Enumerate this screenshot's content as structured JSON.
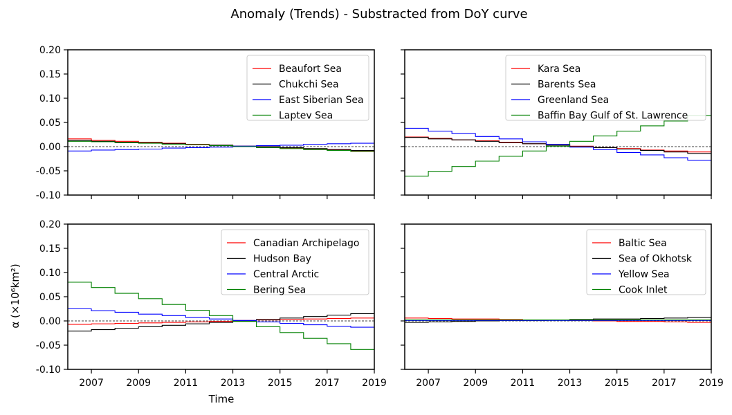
{
  "figure": {
    "title": "Anomaly (Trends) - Substracted from DoY curve",
    "xlabel": "Time",
    "ylabel": "α (×10⁶km²)"
  },
  "chart_data": [
    {
      "type": "line",
      "step": true,
      "panel": "top-left",
      "xlim": [
        2006,
        2019
      ],
      "ylim": [
        -0.1,
        0.2
      ],
      "xticks": [
        "2007",
        "2009",
        "2011",
        "2013",
        "2015",
        "2017",
        "2019"
      ],
      "yticks": [
        "0.20",
        "0.15",
        "0.10",
        "0.05",
        "0.00",
        "-0.05",
        "-0.10"
      ],
      "show_xtick_labels": false,
      "show_ytick_labels": true,
      "zero_line": true,
      "legend_position": "top-right",
      "x": [
        2006,
        2007,
        2008,
        2009,
        2010,
        2011,
        2012,
        2013,
        2014,
        2015,
        2016,
        2017,
        2018
      ],
      "series": [
        {
          "name": "Beaufort Sea",
          "color": "#ff0000",
          "values": [
            0.016,
            0.013,
            0.011,
            0.009,
            0.007,
            0.005,
            0.003,
            0.001,
            -0.001,
            -0.003,
            -0.005,
            -0.007,
            -0.009
          ]
        },
        {
          "name": "Chukchi Sea",
          "color": "#000000",
          "values": [
            0.013,
            0.011,
            0.009,
            0.008,
            0.006,
            0.004,
            0.003,
            0.001,
            0.0,
            -0.002,
            -0.004,
            -0.006,
            -0.008
          ]
        },
        {
          "name": "East Siberian Sea",
          "color": "#0000ff",
          "values": [
            -0.009,
            -0.007,
            -0.006,
            -0.005,
            -0.003,
            -0.002,
            -0.001,
            0.001,
            0.002,
            0.003,
            0.005,
            0.006,
            0.007
          ]
        },
        {
          "name": "Laptev Sea",
          "color": "#008000",
          "values": [
            0.011,
            0.01,
            0.008,
            0.007,
            0.005,
            0.004,
            0.002,
            0.0,
            -0.002,
            -0.004,
            -0.006,
            -0.008,
            -0.01
          ]
        }
      ]
    },
    {
      "type": "line",
      "step": true,
      "panel": "top-right",
      "xlim": [
        2006,
        2019
      ],
      "ylim": [
        -0.1,
        0.2
      ],
      "xticks": [
        "2007",
        "2009",
        "2011",
        "2013",
        "2015",
        "2017",
        "2019"
      ],
      "yticks": [
        "0.20",
        "0.15",
        "0.10",
        "0.05",
        "0.00",
        "-0.05",
        "-0.10"
      ],
      "show_xtick_labels": false,
      "show_ytick_labels": false,
      "zero_line": true,
      "legend_position": "top-right",
      "x": [
        2006,
        2007,
        2008,
        2009,
        2010,
        2011,
        2012,
        2013,
        2014,
        2015,
        2016,
        2017,
        2018
      ],
      "series": [
        {
          "name": "Kara Sea",
          "color": "#ff0000",
          "values": [
            0.02,
            0.017,
            0.014,
            0.012,
            0.009,
            0.006,
            0.003,
            0.001,
            -0.002,
            -0.004,
            -0.007,
            -0.009,
            -0.011
          ]
        },
        {
          "name": "Barents Sea",
          "color": "#000000",
          "values": [
            0.019,
            0.016,
            0.014,
            0.011,
            0.008,
            0.006,
            0.003,
            0.0,
            -0.002,
            -0.005,
            -0.008,
            -0.011,
            -0.014
          ]
        },
        {
          "name": "Greenland Sea",
          "color": "#0000ff",
          "values": [
            0.038,
            0.032,
            0.027,
            0.021,
            0.016,
            0.01,
            0.005,
            -0.001,
            -0.006,
            -0.012,
            -0.017,
            -0.023,
            -0.028
          ]
        },
        {
          "name": "Baffin Bay Gulf of St. Lawrence",
          "color": "#008000",
          "values": [
            -0.061,
            -0.051,
            -0.041,
            -0.03,
            -0.02,
            -0.009,
            0.001,
            0.011,
            0.022,
            0.032,
            0.043,
            0.053,
            0.064
          ]
        }
      ]
    },
    {
      "type": "line",
      "step": true,
      "panel": "bottom-left",
      "xlim": [
        2006,
        2019
      ],
      "ylim": [
        -0.1,
        0.2
      ],
      "xticks": [
        "2007",
        "2009",
        "2011",
        "2013",
        "2015",
        "2017",
        "2019"
      ],
      "yticks": [
        "0.20",
        "0.15",
        "0.10",
        "0.05",
        "0.00",
        "-0.05",
        "-0.10"
      ],
      "show_xtick_labels": true,
      "show_ytick_labels": true,
      "zero_line": true,
      "legend_position": "top-right",
      "x": [
        2006,
        2007,
        2008,
        2009,
        2010,
        2011,
        2012,
        2013,
        2014,
        2015,
        2016,
        2017,
        2018
      ],
      "series": [
        {
          "name": "Canadian Archipelago",
          "color": "#ff0000",
          "values": [
            -0.007,
            -0.006,
            -0.005,
            -0.004,
            -0.003,
            -0.002,
            -0.001,
            0.001,
            0.002,
            0.003,
            0.004,
            0.005,
            0.006
          ]
        },
        {
          "name": "Hudson Bay",
          "color": "#000000",
          "values": [
            -0.021,
            -0.018,
            -0.015,
            -0.012,
            -0.009,
            -0.006,
            -0.003,
            0.0,
            0.003,
            0.006,
            0.009,
            0.012,
            0.015
          ]
        },
        {
          "name": "Central Arctic",
          "color": "#0000ff",
          "values": [
            0.025,
            0.021,
            0.018,
            0.014,
            0.011,
            0.007,
            0.004,
            0.001,
            -0.002,
            -0.005,
            -0.008,
            -0.011,
            -0.013
          ]
        },
        {
          "name": "Bering Sea",
          "color": "#008000",
          "values": [
            0.08,
            0.069,
            0.057,
            0.046,
            0.034,
            0.022,
            0.011,
            -0.001,
            -0.012,
            -0.024,
            -0.036,
            -0.047,
            -0.059
          ]
        }
      ]
    },
    {
      "type": "line",
      "step": true,
      "panel": "bottom-right",
      "xlim": [
        2006,
        2019
      ],
      "ylim": [
        -0.1,
        0.2
      ],
      "xticks": [
        "2007",
        "2009",
        "2011",
        "2013",
        "2015",
        "2017",
        "2019"
      ],
      "yticks": [
        "0.20",
        "0.15",
        "0.10",
        "0.05",
        "0.00",
        "-0.05",
        "-0.10"
      ],
      "show_xtick_labels": true,
      "show_ytick_labels": false,
      "zero_line": true,
      "legend_position": "top-right",
      "x": [
        2006,
        2007,
        2008,
        2009,
        2010,
        2011,
        2012,
        2013,
        2014,
        2015,
        2016,
        2017,
        2018
      ],
      "series": [
        {
          "name": "Baltic Sea",
          "color": "#ff0000",
          "values": [
            0.006,
            0.005,
            0.004,
            0.004,
            0.003,
            0.002,
            0.002,
            0.001,
            0.0,
            -0.001,
            -0.001,
            -0.002,
            -0.003
          ]
        },
        {
          "name": "Sea of Okhotsk",
          "color": "#000000",
          "values": [
            -0.003,
            -0.002,
            -0.001,
            0.0,
            0.001,
            0.001,
            0.002,
            0.003,
            0.004,
            0.004,
            0.005,
            0.006,
            0.007
          ]
        },
        {
          "name": "Yellow Sea",
          "color": "#0000ff",
          "values": [
            0.001,
            0.001,
            0.001,
            0.001,
            0.001,
            0.001,
            0.001,
            0.001,
            0.001,
            0.001,
            0.001,
            0.001,
            0.001
          ]
        },
        {
          "name": "Cook Inlet",
          "color": "#008000",
          "values": [
            0.002,
            0.002,
            0.002,
            0.002,
            0.002,
            0.002,
            0.002,
            0.002,
            0.002,
            0.002,
            0.002,
            0.002,
            0.002
          ]
        }
      ]
    }
  ]
}
